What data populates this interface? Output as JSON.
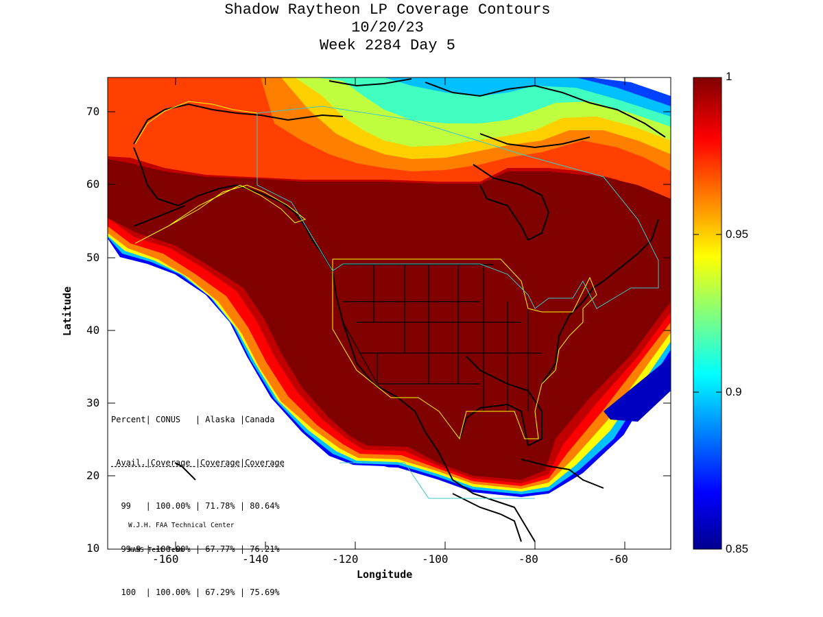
{
  "title": {
    "line1": "Shadow Raytheon LP Coverage Contours",
    "line2": "10/20/23",
    "line3": "Week 2284 Day 5"
  },
  "axes": {
    "xlabel": "Longitude",
    "ylabel": "Latitude",
    "x_ticks": [
      "-160",
      "-140",
      "-120",
      "-100",
      "-80",
      "-60"
    ],
    "y_ticks": [
      "70",
      "60",
      "50",
      "40",
      "30",
      "20",
      "10"
    ],
    "xlim": [
      -175,
      -50
    ],
    "ylim": [
      10,
      75
    ]
  },
  "colorbar": {
    "ticks": [
      "1",
      "0.95",
      "0.9",
      "0.85"
    ],
    "range": [
      0.85,
      1.0
    ],
    "colormap": "jet",
    "colors": [
      "#00008f",
      "#0000ff",
      "#00ffff",
      "#ffff00",
      "#ff0000",
      "#800000"
    ]
  },
  "table": {
    "header1": "Percent| CONUS   | Alaska |Canada",
    "header2": " Avail.|Coverage |Coverage|Coverage",
    "rows": [
      "  99   | 100.00% | 71.78% | 80.64%",
      "  99.9 | 100.00% | 67.77% | 76.21%",
      "  100  | 100.00% | 67.29% | 75.69%"
    ]
  },
  "credit": {
    "line1": "W.J.H. FAA Technical Center",
    "line2": "WAAS Test Team"
  },
  "colors": {
    "full_coverage": "#800000",
    "boundary_yellow": "#ffff00",
    "boundary_cyan": "#3cc8c8"
  }
}
